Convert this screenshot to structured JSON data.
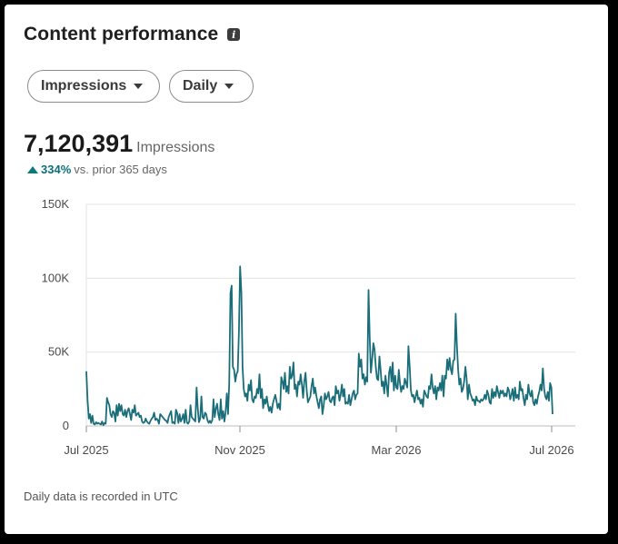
{
  "card": {
    "title": "Content performance",
    "info_icon": "info-icon",
    "metric_dropdown": "Impressions",
    "period_dropdown": "Daily",
    "total_value": "7,120,391",
    "total_unit": "Impressions",
    "change_pct": "334%",
    "change_text": "vs. prior 365 days",
    "footer": "Daily data is recorded in UTC"
  },
  "colors": {
    "line": "#1a6e7a",
    "grid": "#e3e3e3",
    "accent_up": "#0b7a7a"
  },
  "chart_data": {
    "type": "line",
    "title": "",
    "xlabel": "",
    "ylabel": "",
    "ylim": [
      0,
      150000
    ],
    "yticks": [
      0,
      50000,
      100000,
      150000
    ],
    "ytick_labels": [
      "0",
      "50K",
      "100K",
      "150K"
    ],
    "xtick_labels": [
      "Jul 2025",
      "Nov 2025",
      "Mar 2026",
      "Jul 2026"
    ],
    "x_start": "Jul 2025",
    "x_end": "Jul 2026",
    "grid": true,
    "series": [
      {
        "values": [
          37000,
          18000,
          5000,
          8000,
          2000,
          7000,
          1500,
          1000,
          2500,
          1500,
          2000,
          1500,
          1000,
          3000,
          500,
          2000,
          1500,
          19000,
          16000,
          14000,
          8000,
          6000,
          10000,
          9000,
          3000,
          14000,
          7000,
          15000,
          10000,
          14000,
          8000,
          7000,
          11000,
          6000,
          10000,
          12000,
          8000,
          4000,
          11000,
          9000,
          14000,
          7000,
          8000,
          9000,
          6000,
          7000,
          3000,
          2000,
          2500,
          5000,
          3000,
          2000,
          1500,
          3500,
          5000,
          6000,
          9000,
          4000,
          5000,
          4000,
          1500,
          8000,
          7000,
          6000,
          5000,
          4000,
          3500,
          2000,
          6000,
          8000,
          10000,
          2000,
          2500,
          1500,
          11000,
          9000,
          2000,
          8000,
          3000,
          5000,
          8000,
          2000,
          11000,
          2500,
          1500,
          3000,
          14000,
          6000,
          5000,
          4000,
          3000,
          26000,
          12000,
          2500,
          5000,
          20000,
          6000,
          5000,
          9000,
          8000,
          4000,
          2000,
          3500,
          2000,
          4000,
          18000,
          6000,
          12000,
          15000,
          8000,
          4000,
          18000,
          5000,
          10000,
          3000,
          9000,
          22000,
          8000,
          28000,
          90000,
          95000,
          40000,
          38000,
          30000,
          35000,
          37000,
          64000,
          108000,
          90000,
          40000,
          25000,
          20000,
          22000,
          17000,
          28000,
          24000,
          31000,
          18000,
          16000,
          20000,
          19000,
          25000,
          22000,
          35000,
          19000,
          25000,
          12000,
          18000,
          15000,
          20000,
          14000,
          10000,
          13000,
          9000,
          15000,
          18000,
          21000,
          17000,
          12000,
          15000,
          11000,
          33000,
          30000,
          25000,
          36000,
          23000,
          27000,
          22000,
          40000,
          32000,
          34000,
          43000,
          25000,
          28000,
          20000,
          30000,
          28000,
          35000,
          28000,
          19000,
          30000,
          36000,
          24000,
          16000,
          18000,
          20000,
          27000,
          32000,
          22000,
          26000,
          20000,
          16000,
          12000,
          18000,
          20000,
          8000,
          14000,
          22000,
          18000,
          20000,
          23000,
          17000,
          16000,
          19000,
          20000,
          14000,
          27000,
          22000,
          24000,
          17000,
          21000,
          28000,
          20000,
          25000,
          15000,
          16000,
          15000,
          21000,
          14000,
          18000,
          22000,
          24000,
          18000,
          21000,
          22000,
          49000,
          40000,
          45000,
          32000,
          35000,
          28000,
          33000,
          30000,
          92000,
          60000,
          36000,
          45000,
          56000,
          52000,
          40000,
          32000,
          31000,
          47000,
          38000,
          27000,
          30000,
          22000,
          34000,
          27000,
          20000,
          36000,
          40000,
          30000,
          43000,
          24000,
          34000,
          26000,
          25000,
          38000,
          29000,
          23000,
          27000,
          25000,
          32000,
          29000,
          26000,
          54000,
          40000,
          24000,
          20000,
          21000,
          16000,
          20000,
          24000,
          18000,
          19000,
          15000,
          18000,
          13000,
          24000,
          22000,
          20000,
          19000,
          27000,
          25000,
          35000,
          26000,
          22000,
          27000,
          18000,
          26000,
          24000,
          29000,
          24000,
          34000,
          20000,
          34000,
          32000,
          45000,
          38000,
          46000,
          38000,
          35000,
          44000,
          45000,
          76000,
          55000,
          38000,
          28000,
          32000,
          23000,
          25000,
          30000,
          40000,
          32000,
          18000,
          28000,
          22000,
          20000,
          17000,
          18000,
          14000,
          20000,
          17000,
          17000,
          16000,
          18000,
          17000,
          18000,
          21000,
          18000,
          24000,
          21000,
          16000,
          15000,
          25000,
          19000,
          23000,
          20000,
          27000,
          23000,
          19000,
          24000,
          22000,
          24000,
          20000,
          22000,
          20000,
          26000,
          24000,
          18000,
          21000,
          25000,
          17000,
          26000,
          19000,
          21000,
          18000,
          30000,
          24000,
          25000,
          19000,
          14000,
          21000,
          18000,
          28000,
          22000,
          20000,
          24000,
          16000,
          14000,
          18000,
          15000,
          20000,
          23000,
          28000,
          24000,
          39000,
          25000,
          20000,
          18000,
          23000,
          17000,
          29000,
          26000,
          8000
        ]
      }
    ]
  }
}
